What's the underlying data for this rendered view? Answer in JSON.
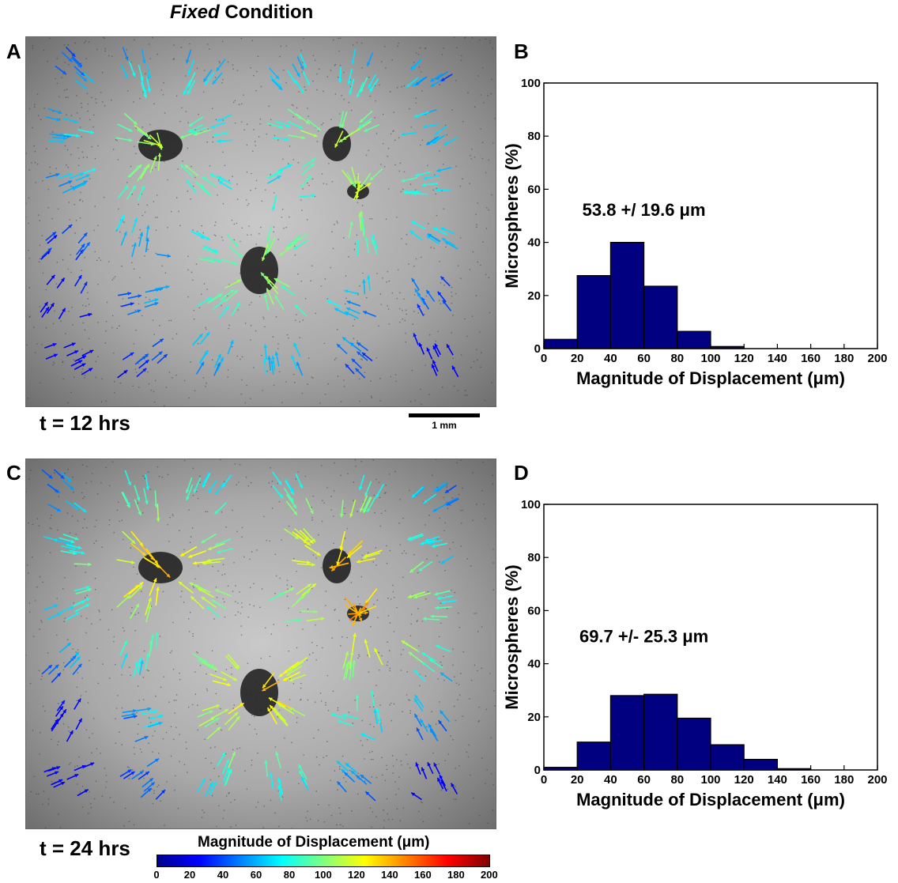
{
  "figure": {
    "title_italic": "Fixed",
    "title_rest": " Condition",
    "panel_labels": [
      "A",
      "B",
      "C",
      "D"
    ],
    "time_labels": [
      "t = 12 hrs",
      "t = 24 hrs"
    ],
    "scale_bar_label": "1 mm",
    "colorbar": {
      "title": "Magnitude of Displacement (μm)",
      "ticks": [
        "0",
        "20",
        "40",
        "60",
        "80",
        "100",
        "120",
        "140",
        "160",
        "180",
        "200"
      ],
      "colormap": "jet"
    }
  },
  "chart_data": [
    {
      "panel": "B",
      "type": "bar",
      "xlabel": "Magnitude of Displacement (μm)",
      "ylabel": "Microspheres (%)",
      "annotation": "53.8 +/ 19.6 μm",
      "xlim": [
        0,
        200
      ],
      "ylim": [
        0,
        100
      ],
      "xticks": [
        0,
        20,
        40,
        60,
        80,
        100,
        120,
        140,
        160,
        180,
        200
      ],
      "yticks": [
        0,
        20,
        40,
        60,
        80,
        100
      ],
      "bin_edges": [
        0,
        20,
        40,
        60,
        80,
        100,
        120
      ],
      "values": [
        3.5,
        27.5,
        40,
        23.5,
        6.5,
        0.8
      ],
      "bar_color": "#000080"
    },
    {
      "panel": "D",
      "type": "bar",
      "xlabel": "Magnitude of Displacement (μm)",
      "ylabel": "Microspheres (%)",
      "annotation": "69.7 +/- 25.3 μm",
      "xlim": [
        0,
        200
      ],
      "ylim": [
        0,
        100
      ],
      "xticks": [
        0,
        20,
        40,
        60,
        80,
        100,
        120,
        140,
        160,
        180,
        200
      ],
      "yticks": [
        0,
        20,
        40,
        60,
        80,
        100
      ],
      "bin_edges": [
        0,
        20,
        40,
        60,
        80,
        100,
        120,
        140,
        160
      ],
      "values": [
        1,
        10.5,
        28,
        28.5,
        19.5,
        9.5,
        4,
        0.5
      ],
      "bar_color": "#000080"
    }
  ]
}
